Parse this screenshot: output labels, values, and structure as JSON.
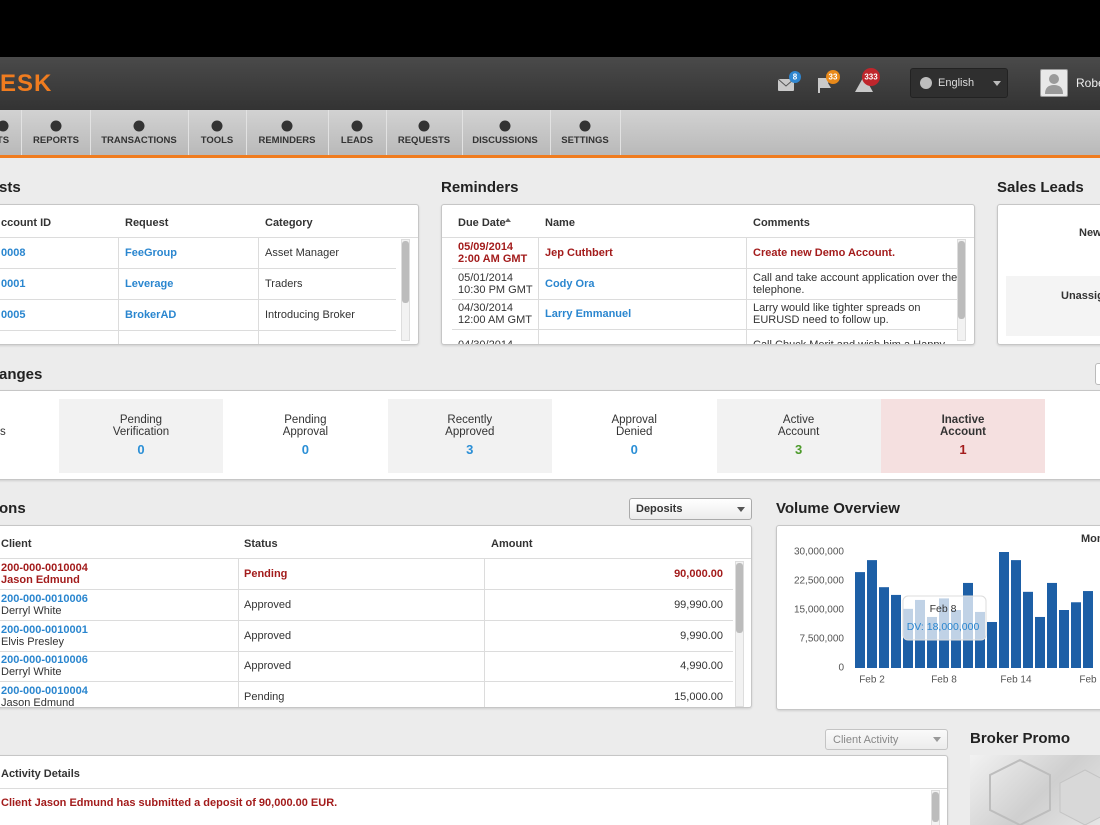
{
  "header": {
    "logo": "ESK",
    "badges": [
      8,
      33,
      333
    ],
    "language": "English",
    "user": "Robe"
  },
  "nav": [
    "TS",
    "REPORTS",
    "TRANSACTIONS",
    "TOOLS",
    "REMINDERS",
    "LEADS",
    "REQUESTS",
    "DISCUSSIONS",
    "SETTINGS"
  ],
  "requests": {
    "title": "sts",
    "columns": [
      "ccount ID",
      "Request",
      "Category"
    ],
    "rows": [
      [
        "0008",
        "FeeGroup",
        "Asset Manager"
      ],
      [
        "0001",
        "Leverage",
        "Traders"
      ],
      [
        "0005",
        "BrokerAD",
        "Introducing Broker"
      ]
    ]
  },
  "reminders": {
    "title": "Reminders",
    "columns": [
      "Due Date",
      "Name",
      "Comments"
    ],
    "rows": [
      {
        "due": "05/09/2014\n2:00 AM GMT",
        "name": "Jep Cuthbert",
        "comment": "Create new Demo Account."
      },
      {
        "due": "05/01/2014\n10:30 PM GMT",
        "name": "Cody Ora",
        "comment": "Call and take account application over the\ntelephone."
      },
      {
        "due": "04/30/2014\n12:00 AM GMT",
        "name": "Larry Emmanuel",
        "comment": "Larry would like tighter spreads on\nEURUSD need to follow up."
      },
      {
        "due": "04/30/2014",
        "comment": "Call Chuck Merit and wish him a Happy"
      }
    ]
  },
  "sales_leads": {
    "title": "Sales Leads",
    "items": [
      "New",
      "Unassig"
    ]
  },
  "status": {
    "title": "anges",
    "lead": "s",
    "cells": [
      {
        "label": "Pending\nVerification",
        "count": 0
      },
      {
        "label": "Pending\nApproval",
        "count": 0
      },
      {
        "label": "Recently\nApproved",
        "count": 3
      },
      {
        "label": "Approval\nDenied",
        "count": 0
      },
      {
        "label": "Active\nAccount",
        "count": 3
      },
      {
        "label": "Inactive\nAccount",
        "count": 1
      }
    ]
  },
  "transactions": {
    "title": "ons",
    "filter": "Deposits",
    "columns": [
      "Client",
      "Status",
      "Amount"
    ],
    "rows": [
      {
        "id": "200-000-0010004",
        "name": "Jason Edmund",
        "status": "Pending",
        "amount": "90,000.00"
      },
      {
        "id": "200-000-0010006",
        "name": "Derryl White",
        "status": "Approved",
        "amount": "99,990.00"
      },
      {
        "id": "200-000-0010001",
        "name": "Elvis Presley",
        "status": "Approved",
        "amount": "9,990.00"
      },
      {
        "id": "200-000-0010006",
        "name": "Derryl White",
        "status": "Approved",
        "amount": "4,990.00"
      },
      {
        "id": "200-000-0010004",
        "name": "Jason Edmund",
        "status": "Pending",
        "amount": "15,000.00"
      }
    ]
  },
  "chart_data": {
    "type": "bar",
    "title": "Volume Overview",
    "period_label": "Mon",
    "categories": [
      null,
      "Feb 2",
      null,
      null,
      null,
      null,
      null,
      "Feb 8",
      null,
      null,
      null,
      null,
      null,
      "Feb 14",
      null,
      null,
      null,
      null,
      null,
      "Feb"
    ],
    "values": [
      24800000,
      27900000,
      20900000,
      18900000,
      15300000,
      17600000,
      13200000,
      18000000,
      15000000,
      22000000,
      14500000,
      11900000,
      30000000,
      27900000,
      19700000,
      13200000,
      22000000,
      15000000,
      17000000,
      19900000
    ],
    "color": "#1d5fa6",
    "ylim": [
      0,
      30000000
    ],
    "yticks": [
      0,
      {
        "value": 7500000,
        "label": "7,500,000"
      },
      {
        "value": 15000000,
        "label": "15,000,000"
      },
      {
        "value": 22500000,
        "label": "22,500,000"
      },
      {
        "value": 30000000,
        "label": "30,000,000"
      }
    ],
    "grid": false,
    "annotations": [
      "Feb 8",
      "DV: 18,000,000"
    ]
  },
  "activity": {
    "filter": "Client Activity",
    "header": "Activity Details",
    "rows": [
      "Client Jason Edmund has submitted a deposit of 90,000.00 EUR."
    ]
  },
  "promo": {
    "title": "Broker Promo"
  }
}
